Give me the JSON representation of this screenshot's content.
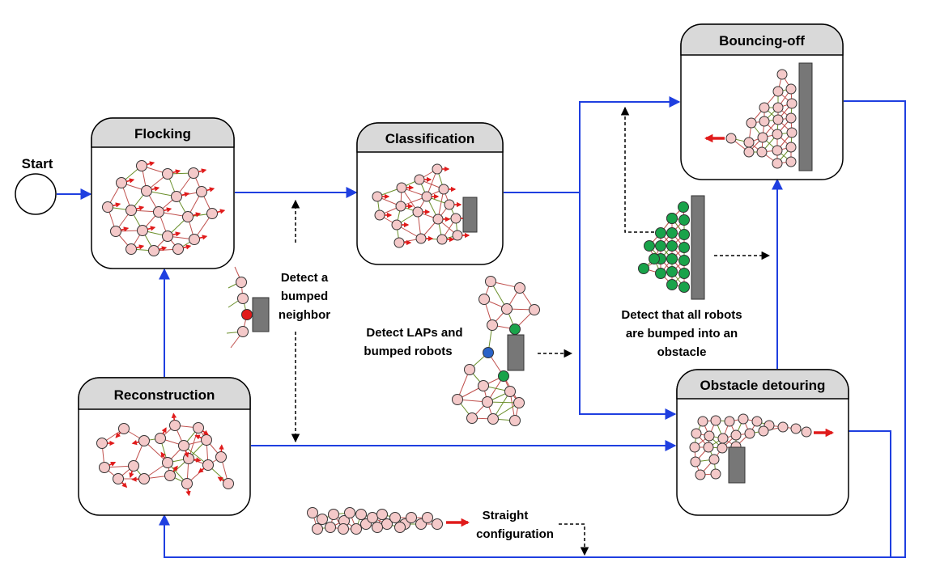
{
  "start_label": "Start",
  "states": {
    "flocking": "Flocking",
    "classification": "Classification",
    "bouncing_off": "Bouncing-off",
    "reconstruction": "Reconstruction",
    "obstacle_detouring": "Obstacle detouring"
  },
  "conditions": {
    "bumped_neighbor": [
      "Detect a",
      "bumped",
      "neighbor"
    ],
    "laps": [
      "Detect LAPs and",
      "bumped robots"
    ],
    "all_bumped": [
      "Detect that all robots",
      "are bumped into an",
      "obstacle"
    ],
    "straight": [
      "Straight",
      "configuration"
    ]
  },
  "colors": {
    "flow": "#1f3fe0",
    "robot": "#f4c9c9",
    "robot_bumped": "#e01b1b",
    "robot_green": "#19a34a",
    "robot_lap": "#2a63c8",
    "heading": "#e01b1b",
    "obstacle": "#777777",
    "header_fill": "#d9d9d9",
    "link_red": "#c0504d",
    "link_green": "#6a8f2a"
  }
}
